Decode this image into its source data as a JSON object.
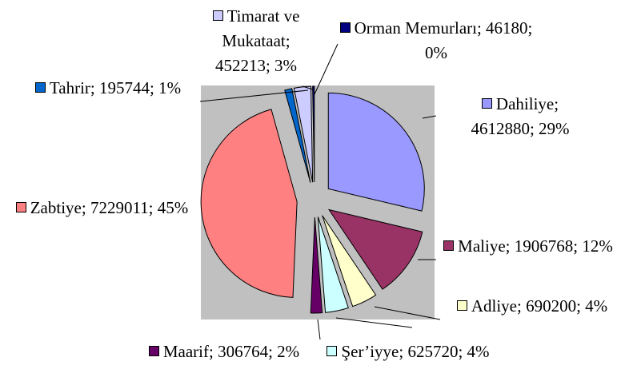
{
  "chart_data": {
    "type": "pie",
    "values": [
      4612880,
      1906768,
      690200,
      625720,
      306764,
      7229011,
      195744,
      452213,
      46180
    ],
    "value_labels": [
      "Dahiliye; 4612880; 29%",
      "Maliye; 1906768; 12%",
      "Adliye; 690200; 4%",
      "Şer’iyye; 625720; 4%",
      "Maarif; 306764; 2%",
      "Zabtiye; 7229011; 45%",
      "Tahrir; 195744; 1%",
      "Timarat ve Mukataat; 452213; 3%",
      "Orman Memurları; 46180; 0%"
    ],
    "colors": [
      "#9999ff",
      "#993366",
      "#ffffcc",
      "#ccffff",
      "#660066",
      "#ff8080",
      "#0066cc",
      "#ccccff",
      "#000080"
    ]
  }
}
